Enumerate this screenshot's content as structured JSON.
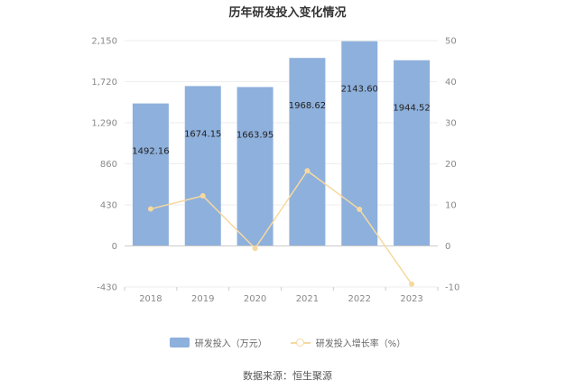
{
  "chart_data": {
    "type": "bar",
    "title": "历年研发投入变化情况",
    "categories": [
      "2018",
      "2019",
      "2020",
      "2021",
      "2022",
      "2023"
    ],
    "series": [
      {
        "name": "研发投入（万元）",
        "type": "bar",
        "axis": "left",
        "values": [
          1492.16,
          1674.15,
          1663.95,
          1968.62,
          2143.6,
          1944.52
        ],
        "labels": [
          "1492.16",
          "1674.15",
          "1663.95",
          "1968.62",
          "2143.60",
          "1944.52"
        ]
      },
      {
        "name": "研发投入增长率（%）",
        "type": "line",
        "axis": "right",
        "values": [
          9.0,
          12.2,
          -0.6,
          18.3,
          8.9,
          -9.3
        ]
      }
    ],
    "y_left": {
      "ticks": [
        2150,
        1720,
        1290,
        860,
        430,
        0,
        -430
      ],
      "tick_labels": [
        "2,150",
        "1,720",
        "1,290",
        "860",
        "430",
        "0",
        "-430"
      ],
      "ylim": [
        -430,
        2150
      ]
    },
    "y_right": {
      "ticks": [
        50,
        40,
        30,
        20,
        10,
        0,
        -10
      ],
      "tick_labels": [
        "50",
        "40",
        "30",
        "20",
        "10",
        "0",
        "-10"
      ],
      "ylim": [
        -10,
        50
      ]
    },
    "grid": true,
    "legend_position": "bottom-center",
    "colors": {
      "bar": "#8eb0dc",
      "line": "#f5d9a0",
      "grid": "#eeeeee",
      "axis": "#cccccc"
    }
  },
  "source": "数据来源：恒生聚源"
}
